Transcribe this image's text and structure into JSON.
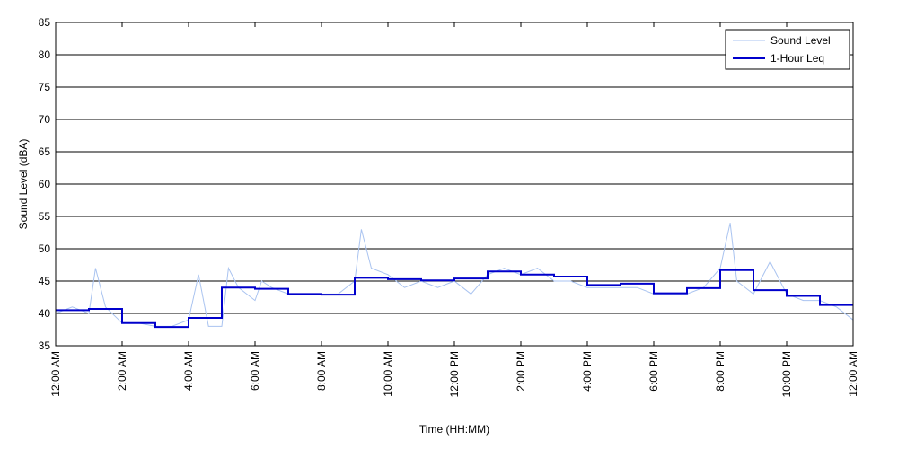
{
  "chart_data": {
    "type": "line",
    "title": "",
    "xlabel": "Time (HH:MM)",
    "ylabel": "Sound Level (dBA)",
    "ylim": [
      35,
      85
    ],
    "yticks": [
      35,
      40,
      45,
      50,
      55,
      60,
      65,
      70,
      75,
      80,
      85
    ],
    "xlim": [
      0,
      24
    ],
    "x_unit": "hours after 12:00 AM",
    "xticks": [
      {
        "x": 0,
        "label": "12:00 AM"
      },
      {
        "x": 2,
        "label": "2:00 AM"
      },
      {
        "x": 4,
        "label": "4:00 AM"
      },
      {
        "x": 6,
        "label": "6:00 AM"
      },
      {
        "x": 8,
        "label": "8:00 AM"
      },
      {
        "x": 10,
        "label": "10:00 AM"
      },
      {
        "x": 12,
        "label": "12:00 PM"
      },
      {
        "x": 14,
        "label": "2:00 PM"
      },
      {
        "x": 16,
        "label": "4:00 PM"
      },
      {
        "x": 18,
        "label": "6:00 PM"
      },
      {
        "x": 20,
        "label": "8:00 PM"
      },
      {
        "x": 22,
        "label": "10:00 PM"
      },
      {
        "x": 24,
        "label": "12:00 AM"
      }
    ],
    "grid": "horizontal",
    "legend_position": "top-right",
    "series": [
      {
        "name": "Sound Level",
        "color": "#a9c3f0",
        "style": "thin-line",
        "x": [
          0,
          0.5,
          1,
          1.2,
          1.5,
          2,
          2.5,
          3,
          3.5,
          4,
          4.3,
          4.6,
          5,
          5.2,
          5.5,
          6,
          6.2,
          6.5,
          7,
          7.5,
          8,
          8.5,
          9,
          9.2,
          9.5,
          10,
          10.5,
          11,
          11.5,
          12,
          12.5,
          13,
          13.5,
          14,
          14.5,
          15,
          15.5,
          16,
          16.5,
          17,
          17.5,
          18,
          18.5,
          19,
          19.5,
          20,
          20.3,
          20.5,
          21,
          21.5,
          22,
          22.5,
          23,
          23.5,
          24
        ],
        "values": [
          40,
          41,
          40,
          47,
          41,
          38.5,
          38.5,
          38,
          38,
          39,
          46,
          38,
          38,
          47,
          44,
          42,
          45,
          44,
          43,
          43,
          43,
          43,
          45,
          53,
          47,
          46,
          44,
          45,
          44,
          45,
          43,
          46,
          47,
          46,
          47,
          45,
          45,
          44,
          44,
          44,
          44,
          43,
          43,
          43,
          44,
          47,
          54,
          45,
          43,
          48,
          43,
          42,
          42,
          41,
          39
        ]
      },
      {
        "name": "1-Hour Leq",
        "color": "#0000cc",
        "style": "step",
        "x": [
          0,
          1,
          2,
          3,
          4,
          5,
          6,
          7,
          8,
          9,
          10,
          11,
          12,
          13,
          14,
          15,
          16,
          17,
          18,
          19,
          20,
          21,
          22,
          23
        ],
        "values": [
          40.5,
          40.7,
          38.5,
          37.9,
          39.3,
          44.0,
          43.8,
          43.0,
          42.9,
          45.5,
          45.3,
          45.1,
          45.4,
          46.5,
          46.0,
          45.7,
          44.4,
          44.6,
          43.1,
          43.9,
          46.7,
          43.6,
          42.7,
          41.3
        ]
      }
    ]
  }
}
